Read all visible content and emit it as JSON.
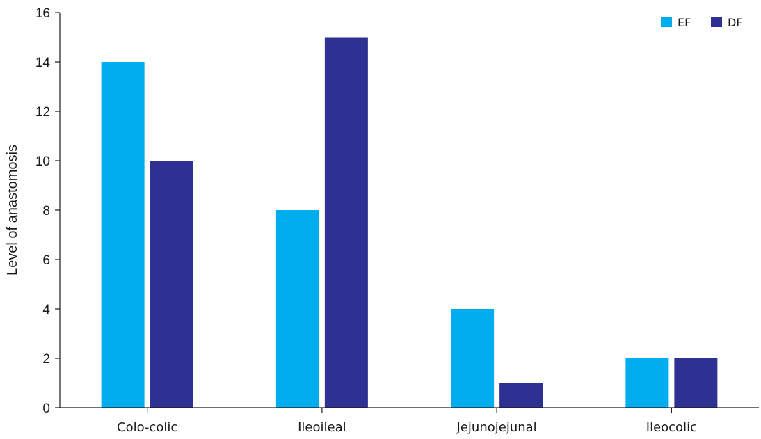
{
  "chart_data": {
    "type": "bar",
    "title": "",
    "xlabel": "",
    "ylabel": "Level of anastomosis",
    "categories": [
      "Colo-colic",
      "Ileoileal",
      "Jejunojejunal",
      "Ileocolic"
    ],
    "series": [
      {
        "name": "EF",
        "values": [
          14,
          8,
          4,
          2
        ],
        "color": "#00adef"
      },
      {
        "name": "DF",
        "values": [
          10,
          15,
          1,
          2
        ],
        "color": "#2e3192"
      }
    ],
    "ylim": [
      0,
      16
    ],
    "yticks": [
      0,
      2,
      4,
      6,
      8,
      10,
      12,
      14,
      16
    ],
    "grid": false,
    "legend_position": "top-right"
  }
}
